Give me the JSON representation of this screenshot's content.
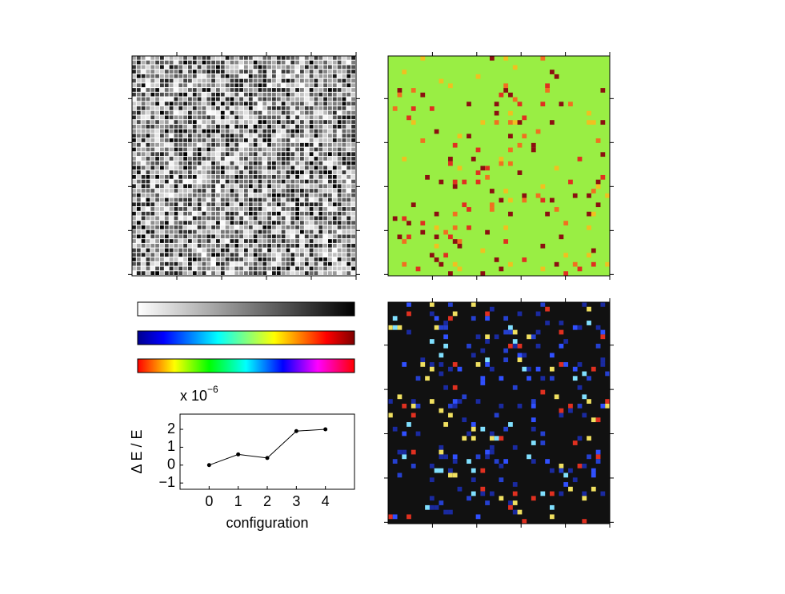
{
  "chart_data": {
    "type": "line",
    "y_scale_label": "x 10",
    "y_scale_exponent": "−6",
    "ylabel": "Δ E / E",
    "xlabel": "configuration",
    "x": [
      0,
      1,
      2,
      3,
      4
    ],
    "values": [
      0,
      0.6,
      0.4,
      1.9,
      2.0
    ],
    "color": "#000000",
    "xlim": [
      -1,
      5
    ],
    "ylim": [
      -1.35,
      2.85
    ],
    "xticks": [
      0,
      1,
      2,
      3,
      4
    ],
    "yticks": [
      {
        "value": -1,
        "label": "−1"
      },
      0,
      1,
      2
    ]
  }
}
